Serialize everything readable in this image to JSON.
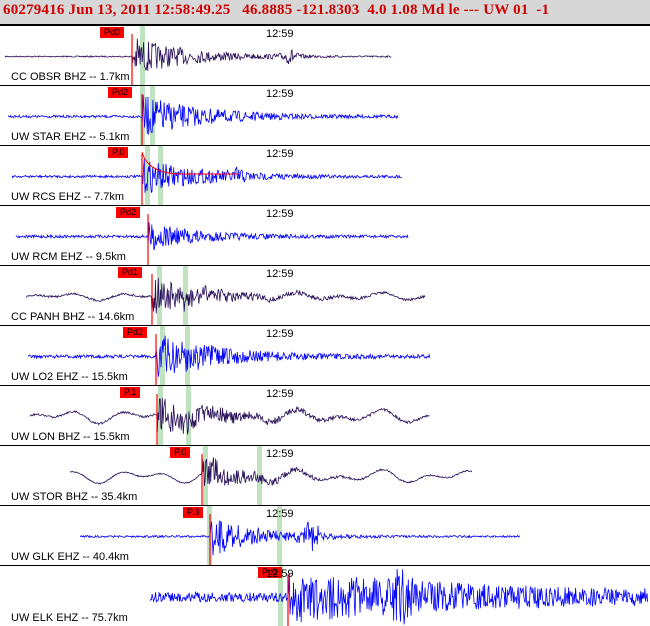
{
  "header": {
    "text": "60279416 Jun 13, 2011 12:58:49.25   46.8885 -121.8303  4.0 1.08 Md le --- UW 01  -1"
  },
  "colors": {
    "header_text": "#d00000",
    "header_bg": "#d7d7d7",
    "trace_dark": "#28105a",
    "trace_blue": "#0000ff",
    "pick_red": "#ff0000",
    "window_green": "#bfe3bf"
  },
  "panels": [
    {
      "station": "CC OBSR BHZ -- 1.7km",
      "time": "12:59",
      "pick": "Pd0",
      "trace": "dark"
    },
    {
      "station": "UW STAR EHZ -- 5.1km",
      "time": "12:59",
      "pick": "Pd2",
      "trace": "blue"
    },
    {
      "station": "UW RCS EHZ -- 7.7km",
      "time": "12:59",
      "pick": "P.0",
      "trace": "blue"
    },
    {
      "station": "UW RCM EHZ -- 9.5km",
      "time": "12:59",
      "pick": "Pd2",
      "trace": "blue"
    },
    {
      "station": "CC PANH BHZ -- 14.6km",
      "time": "12:59",
      "pick": "Pd1",
      "trace": "dark"
    },
    {
      "station": "UW LO2 EHZ -- 15.5km",
      "time": "12:59",
      "pick": "Pd2",
      "trace": "blue"
    },
    {
      "station": "UW LON BHZ -- 15.5km",
      "time": "12:59",
      "pick": "P.1",
      "trace": "dark"
    },
    {
      "station": "UW STOR BHZ -- 35.4km",
      "time": "12:59",
      "pick": "P.0",
      "trace": "dark"
    },
    {
      "station": "UW GLK EHZ -- 40.4km",
      "time": "12:59",
      "pick": "P.3",
      "trace": "blue"
    },
    {
      "station": "UW ELK EHZ -- 75.7km",
      "time": "12:59",
      "pick": "Pd2",
      "trace": "blue"
    }
  ]
}
